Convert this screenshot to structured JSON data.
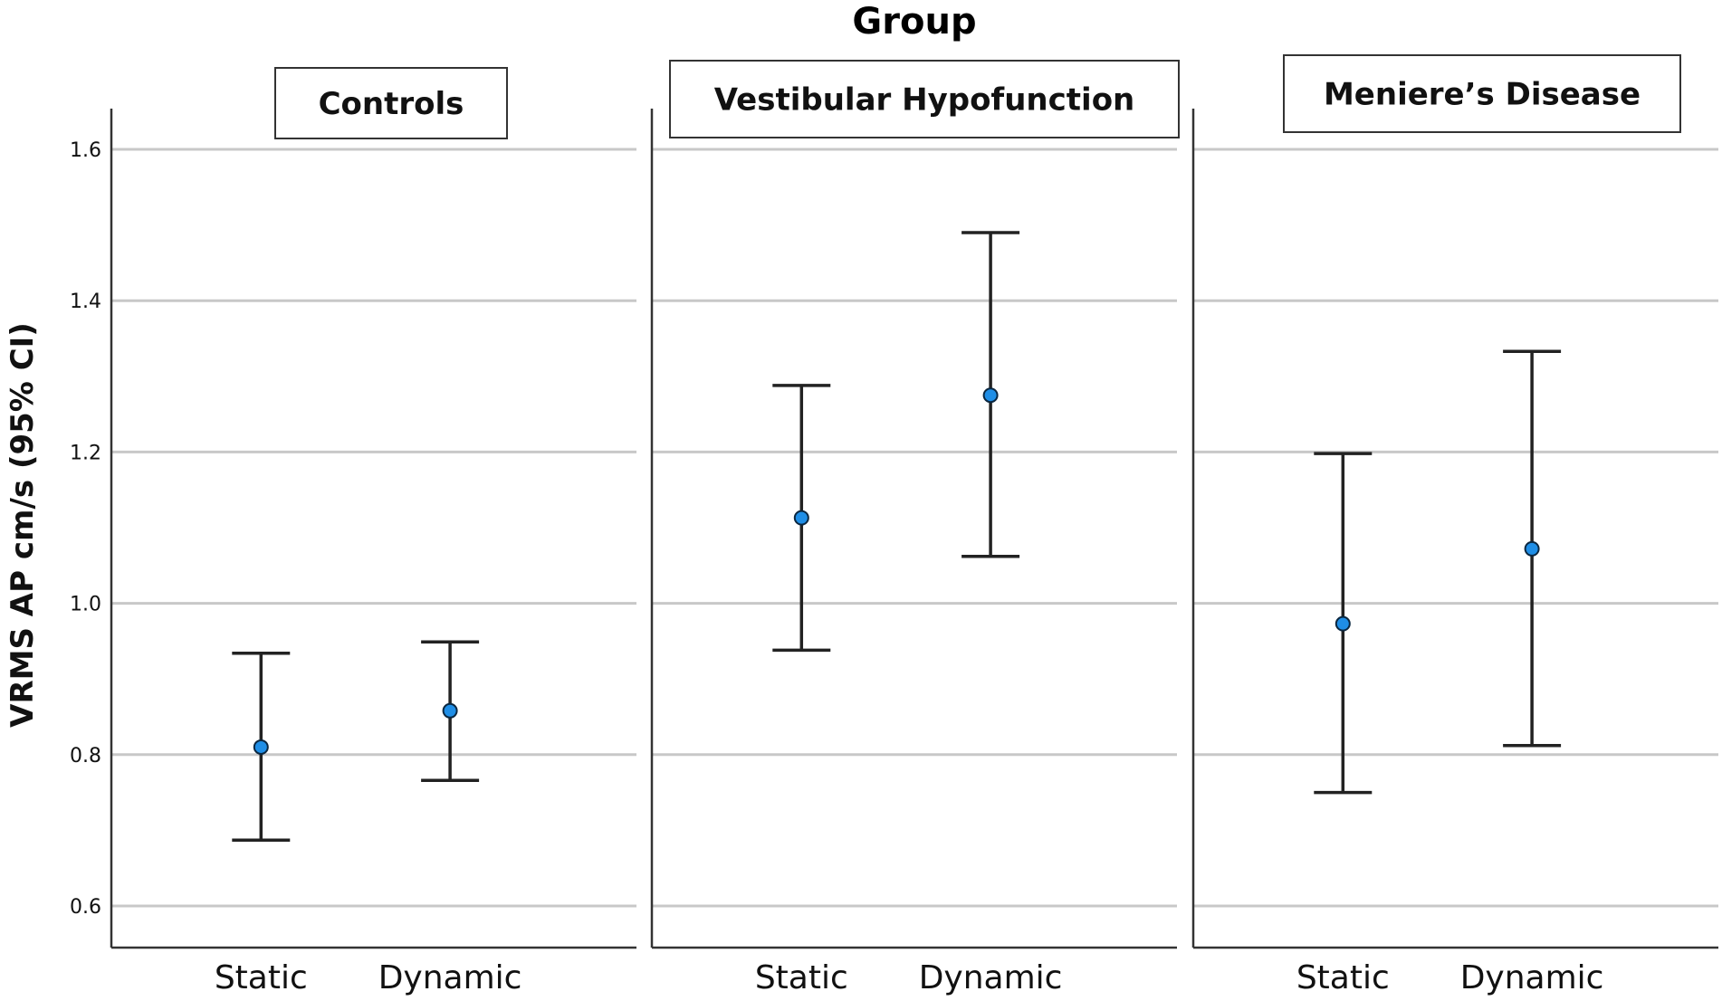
{
  "chart_data": {
    "type": "errorbar",
    "title": "Group",
    "ylabel": "VRMS AP cm/s (95% CI)",
    "ylim": [
      0.55,
      1.65
    ],
    "yticks": [
      0.6,
      0.8,
      1.0,
      1.2,
      1.4,
      1.6
    ],
    "ytick_labels": [
      "0.6",
      "0.8",
      "1.0",
      "1.2",
      "1.4",
      "1.6"
    ],
    "categories": [
      "Static",
      "Dynamic"
    ],
    "grid": true,
    "point_color": "#1f8ee6",
    "panels": [
      {
        "name": "Controls",
        "points": [
          {
            "category": "Static",
            "mean": 0.81,
            "lower": 0.687,
            "upper": 0.934
          },
          {
            "category": "Dynamic",
            "mean": 0.858,
            "lower": 0.766,
            "upper": 0.949
          }
        ]
      },
      {
        "name": "Vestibular Hypofunction",
        "points": [
          {
            "category": "Static",
            "mean": 1.113,
            "lower": 0.938,
            "upper": 1.288
          },
          {
            "category": "Dynamic",
            "mean": 1.275,
            "lower": 1.062,
            "upper": 1.49
          }
        ]
      },
      {
        "name": "Meniere’s Disease",
        "points": [
          {
            "category": "Static",
            "mean": 0.973,
            "lower": 0.75,
            "upper": 1.198
          },
          {
            "category": "Dynamic",
            "mean": 1.072,
            "lower": 0.812,
            "upper": 1.333
          }
        ]
      }
    ]
  }
}
